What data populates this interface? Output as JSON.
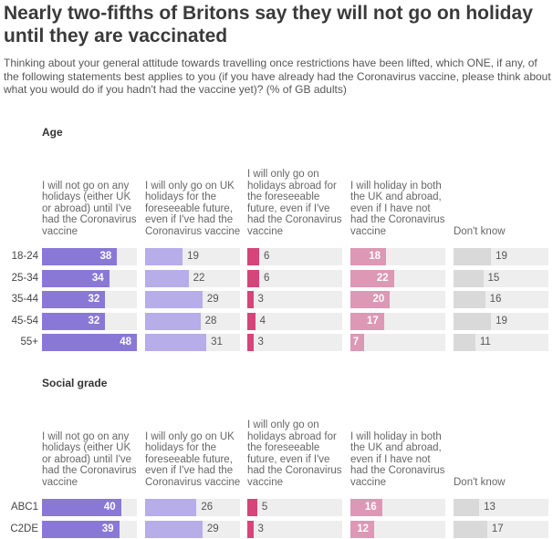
{
  "title": "Nearly two-fifths of Britons say they will not go on holiday until they are vaccinated",
  "subtitle": "Thinking about your general attitude towards travelling once restrictions have been lifted, which ONE, if any, of the following statements best applies to you (if you have already had the Coronavirus vaccine, please think about what you would do if you hadn't had the vaccine yet)? (% of GB adults)",
  "colors": {
    "col0": "#8a78d6",
    "col1": "#b7ade9",
    "col2": "#d6457a",
    "col3": "#dc98b5",
    "col4": "#d9d9d9"
  },
  "chart_data": {
    "type": "bar",
    "xlim": [
      0,
      48
    ],
    "columns": [
      "I will not go on any holidays (either UK or abroad) until I've had the Coronavirus vaccine",
      "I will only go on UK holidays for the foreseeable future, even if I've had the Coronavirus vaccine",
      "I will only go on holidays abroad for the foreseeable future, even if I've had the Coronavirus vaccine",
      "I will holiday in both the UK and abroad, even if I have not had the Coronavirus vaccine",
      "Don't know"
    ],
    "panels": [
      {
        "title": "Age",
        "rows": [
          {
            "label": "18-24",
            "values": [
              38,
              19,
              6,
              18,
              19
            ]
          },
          {
            "label": "25-34",
            "values": [
              34,
              22,
              6,
              22,
              15
            ]
          },
          {
            "label": "35-44",
            "values": [
              32,
              29,
              3,
              20,
              16
            ]
          },
          {
            "label": "45-54",
            "values": [
              32,
              28,
              4,
              17,
              19
            ]
          },
          {
            "label": "55+",
            "values": [
              48,
              31,
              3,
              7,
              11
            ]
          }
        ]
      },
      {
        "title": "Social grade",
        "rows": [
          {
            "label": "ABC1",
            "values": [
              40,
              26,
              5,
              16,
              13
            ]
          },
          {
            "label": "C2DE",
            "values": [
              39,
              29,
              3,
              12,
              17
            ]
          }
        ]
      }
    ]
  }
}
